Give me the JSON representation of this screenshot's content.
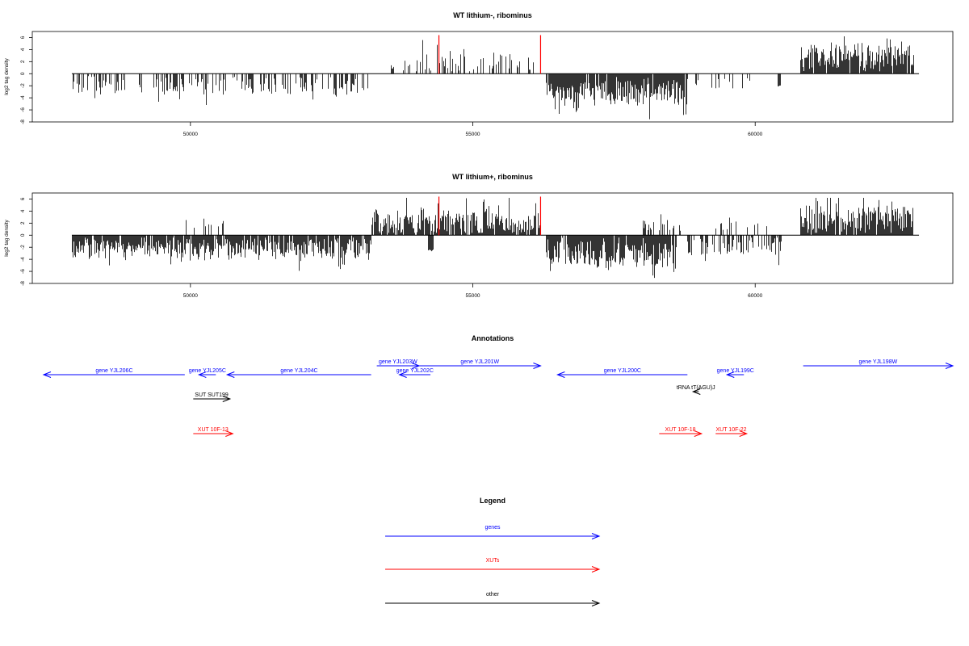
{
  "colors": {
    "gene": "#0000ff",
    "xut": "#ff0000",
    "other": "#000000",
    "marker": "#ff0000",
    "bars": "#000000"
  },
  "chart_data": [
    {
      "type": "bar",
      "title": "WT lithium-, ribominus",
      "ylabel": "log2 tag density",
      "xlim": [
        47200,
        63500
      ],
      "ylim": [
        -8,
        7
      ],
      "xticks": [
        50000,
        55000,
        60000
      ],
      "xtick_labels": [
        "50000",
        "55000",
        "60000"
      ],
      "yticks": [
        -8,
        -6,
        -4,
        -2,
        0,
        2,
        4,
        6
      ],
      "ytick_labels": [
        "-8",
        "-6",
        "-4",
        "-2",
        "0",
        "2",
        "4",
        "6"
      ],
      "baseline": [
        47900,
        62900
      ],
      "markers": [
        54400,
        56200
      ],
      "segments": [
        {
          "from": 47900,
          "to": 53200,
          "sign": -1,
          "density": 0.35,
          "mean": 1.9,
          "spread": 1.6
        },
        {
          "from": 53550,
          "to": 53600,
          "sign": 1,
          "density": 1.0,
          "mean": 1.0,
          "spread": 0.2
        },
        {
          "from": 53750,
          "to": 56100,
          "sign": 1,
          "density": 0.3,
          "mean": 1.8,
          "spread": 1.7
        },
        {
          "from": 56300,
          "to": 58800,
          "sign": -1,
          "density": 0.95,
          "mean": 3.0,
          "spread": 2.2
        },
        {
          "from": 58900,
          "to": 59900,
          "sign": -1,
          "density": 0.15,
          "mean": 1.8,
          "spread": 1.2
        },
        {
          "from": 60400,
          "to": 60450,
          "sign": -1,
          "density": 1.0,
          "mean": 2.0,
          "spread": 0.2
        },
        {
          "from": 60800,
          "to": 62800,
          "sign": 1,
          "density": 0.95,
          "mean": 2.8,
          "spread": 2.4
        }
      ]
    },
    {
      "type": "bar",
      "title": "WT lithium+, ribominus",
      "ylabel": "log2 tag density",
      "xlim": [
        47200,
        63500
      ],
      "ylim": [
        -8,
        7
      ],
      "xticks": [
        50000,
        55000,
        60000
      ],
      "xtick_labels": [
        "50000",
        "55000",
        "60000"
      ],
      "yticks": [
        -8,
        -6,
        -4,
        -2,
        0,
        2,
        4,
        6
      ],
      "ytick_labels": [
        "-8",
        "-6",
        "-4",
        "-2",
        "0",
        "2",
        "4",
        "6"
      ],
      "baseline": [
        47900,
        62900
      ],
      "markers": [
        54400,
        56200
      ],
      "segments": [
        {
          "from": 47900,
          "to": 53200,
          "sign": -1,
          "density": 0.9,
          "mean": 2.1,
          "spread": 1.8
        },
        {
          "from": 49900,
          "to": 50600,
          "sign": 1,
          "density": 0.25,
          "mean": 1.6,
          "spread": 1.2
        },
        {
          "from": 53200,
          "to": 56200,
          "sign": 1,
          "density": 0.9,
          "mean": 2.0,
          "spread": 2.2
        },
        {
          "from": 54200,
          "to": 54300,
          "sign": -1,
          "density": 1.0,
          "mean": 2.5,
          "spread": 0.2
        },
        {
          "from": 56300,
          "to": 58600,
          "sign": -1,
          "density": 0.95,
          "mean": 3.0,
          "spread": 2.4
        },
        {
          "from": 58000,
          "to": 58700,
          "sign": 1,
          "density": 0.4,
          "mean": 1.5,
          "spread": 1.3
        },
        {
          "from": 58800,
          "to": 60500,
          "sign": -1,
          "density": 0.5,
          "mean": 2.0,
          "spread": 1.6
        },
        {
          "from": 59300,
          "to": 60300,
          "sign": 1,
          "density": 0.2,
          "mean": 1.5,
          "spread": 1.3
        },
        {
          "from": 60800,
          "to": 62800,
          "sign": 1,
          "density": 0.95,
          "mean": 2.6,
          "spread": 2.6
        }
      ]
    }
  ],
  "annotations": {
    "title": "Annotations",
    "genes": [
      {
        "label": "gene YJL206C",
        "start": 49900,
        "end": 47400,
        "row": 1
      },
      {
        "label": "gene YJL205C",
        "start": 50450,
        "end": 50150,
        "row": 1
      },
      {
        "label": "gene YJL204C",
        "start": 53200,
        "end": 50650,
        "row": 1
      },
      {
        "label": "gene YJL203W",
        "start": 53300,
        "end": 54050,
        "row": 0
      },
      {
        "label": "gene YJL202C",
        "start": 54250,
        "end": 53700,
        "row": 1
      },
      {
        "label": "gene YJL201W",
        "start": 54050,
        "end": 56200,
        "row": 0
      },
      {
        "label": "gene YJL200C",
        "start": 58800,
        "end": 56500,
        "row": 1
      },
      {
        "label": "gene YJL199C",
        "start": 59800,
        "end": 59500,
        "row": 1
      },
      {
        "label": "gene YJL198W",
        "start": 60850,
        "end": 63500,
        "row": 0
      }
    ],
    "xuts": [
      {
        "label": "XUT 10F-13",
        "start": 50050,
        "end": 50750
      },
      {
        "label": "XUT 10F-18",
        "start": 58300,
        "end": 59050
      },
      {
        "label": "XUT 10F-22",
        "start": 59300,
        "end": 59850
      }
    ],
    "others": [
      {
        "label": "SUT SUT199",
        "start": 50050,
        "end": 50700,
        "row": 0
      },
      {
        "label": "tRNA tT(AGU)J",
        "start": 59000,
        "end": 58900,
        "row": 1
      }
    ]
  },
  "legend": {
    "title": "Legend",
    "items": [
      {
        "label": "genes",
        "kind": "gene"
      },
      {
        "label": "XUTs",
        "kind": "xut"
      },
      {
        "label": "other",
        "kind": "other"
      }
    ]
  }
}
